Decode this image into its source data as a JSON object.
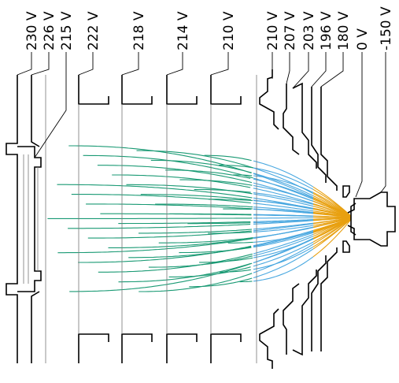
{
  "labels": [
    "230 V",
    "226 V",
    "215 V",
    "222 V",
    "218 V",
    "214 V",
    "210 V",
    "210 V",
    "207 V",
    "203 V",
    "196 V",
    "180 V",
    "0 V",
    "-150 V"
  ]
}
